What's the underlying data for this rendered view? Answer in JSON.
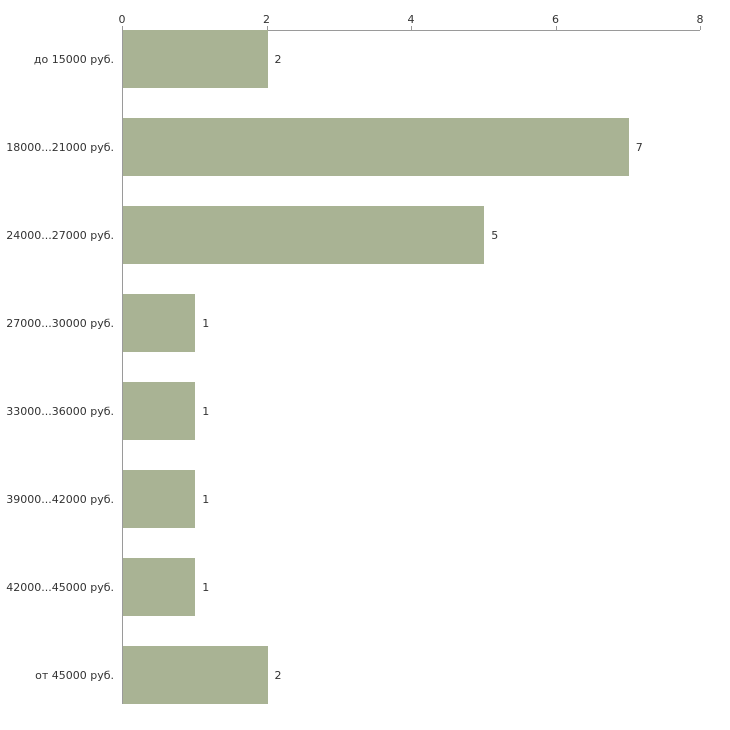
{
  "chart_data": {
    "type": "bar",
    "orientation": "horizontal",
    "categories": [
      "до 15000 руб.",
      "18000...21000 руб.",
      "24000...27000 руб.",
      "27000...30000 руб.",
      "33000...36000 руб.",
      "39000...42000 руб.",
      "42000...45000 руб.",
      "от 45000 руб."
    ],
    "values": [
      2,
      7,
      5,
      1,
      1,
      1,
      1,
      2
    ],
    "value_labels": [
      "2",
      "7",
      "5",
      "1",
      "1",
      "1",
      "1",
      "2"
    ],
    "x_ticks": [
      0,
      2,
      4,
      6,
      8
    ],
    "x_tick_labels": [
      "0",
      "2",
      "4",
      "6",
      "8"
    ],
    "xlim": [
      0,
      8
    ],
    "grid": false,
    "legend": "none",
    "colors": {
      "bar_fill": "#a9b394",
      "axis_line": "#9a9a9a",
      "text": "#333333",
      "background": "#ffffff"
    }
  }
}
